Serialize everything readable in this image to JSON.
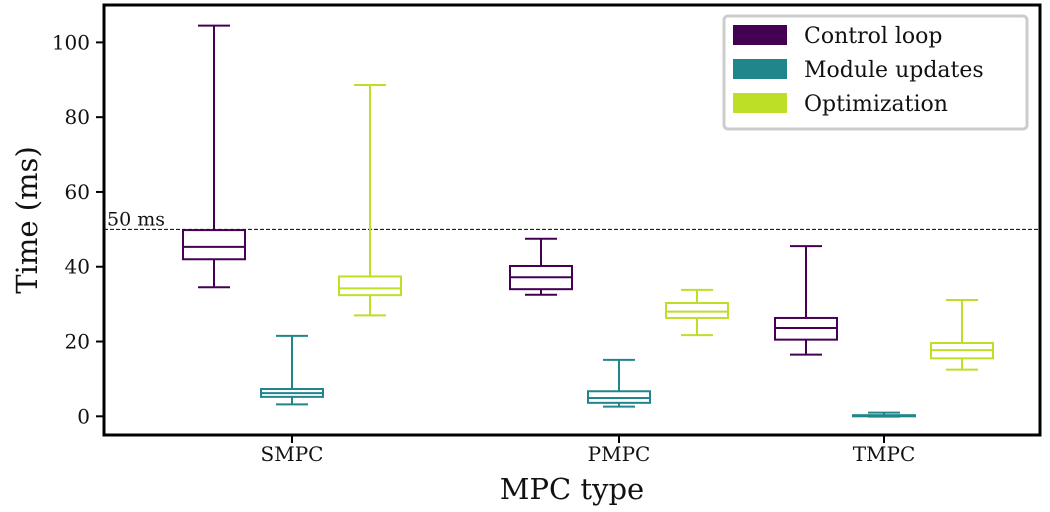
{
  "chart_data": {
    "type": "box",
    "xlabel": "MPC type",
    "ylabel": "Time (ms)",
    "ylim": [
      -5,
      110
    ],
    "yticks": [
      0,
      20,
      40,
      60,
      80,
      100
    ],
    "categories": [
      "SMPC",
      "PMPC",
      "TMPC"
    ],
    "legend_position": "top-right",
    "reference_line": {
      "value": 50,
      "label": "50 ms",
      "style": "dashed"
    },
    "series": [
      {
        "name": "Control loop",
        "color": "#440154",
        "boxes": [
          {
            "category": "SMPC",
            "whisker_low": 34.5,
            "q1": 42.0,
            "median": 45.3,
            "q3": 49.8,
            "whisker_high": 104.5
          },
          {
            "category": "PMPC",
            "whisker_low": 32.5,
            "q1": 34.0,
            "median": 37.2,
            "q3": 40.2,
            "whisker_high": 47.5
          },
          {
            "category": "TMPC",
            "whisker_low": 16.5,
            "q1": 20.5,
            "median": 23.6,
            "q3": 26.3,
            "whisker_high": 45.5
          }
        ]
      },
      {
        "name": "Module updates",
        "color": "#21868b",
        "boxes": [
          {
            "category": "SMPC",
            "whisker_low": 3.2,
            "q1": 5.2,
            "median": 6.2,
            "q3": 7.3,
            "whisker_high": 21.5
          },
          {
            "category": "PMPC",
            "whisker_low": 2.6,
            "q1": 3.6,
            "median": 4.9,
            "q3": 6.7,
            "whisker_high": 15.1
          },
          {
            "category": "TMPC",
            "whisker_low": -0.1,
            "q1": 0.0,
            "median": 0.1,
            "q3": 0.3,
            "whisker_high": 1.0
          }
        ]
      },
      {
        "name": "Optimization",
        "color": "#bddf26",
        "boxes": [
          {
            "category": "SMPC",
            "whisker_low": 27.0,
            "q1": 32.4,
            "median": 34.2,
            "q3": 37.4,
            "whisker_high": 88.6
          },
          {
            "category": "PMPC",
            "whisker_low": 21.7,
            "q1": 26.3,
            "median": 28.0,
            "q3": 30.3,
            "whisker_high": 33.8
          },
          {
            "category": "TMPC",
            "whisker_low": 12.5,
            "q1": 15.5,
            "median": 17.7,
            "q3": 19.6,
            "whisker_high": 31.1
          }
        ]
      }
    ]
  }
}
